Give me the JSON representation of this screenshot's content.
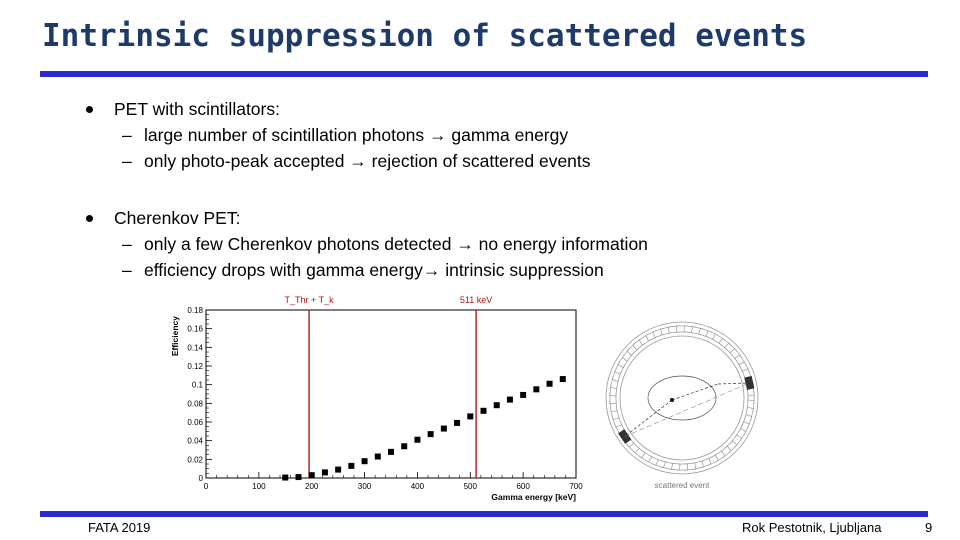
{
  "slide": {
    "title": "Intrinsic suppression of scattered events",
    "bullets": [
      {
        "text": "PET with scintillators:",
        "subs": [
          "large number of scintillation photons → gamma energy",
          "only photo-peak accepted → rejection of scattered events"
        ]
      },
      {
        "text": "Cherenkov PET:",
        "subs": [
          "only a few Cherenkov photons detected → no energy information",
          "efficiency drops with gamma energy→ intrinsic suppression"
        ]
      }
    ],
    "sub_marker": "–",
    "footer_left": "FATA 2019",
    "footer_right": "Rok Pestotnik, Ljubljana",
    "page_number": "9",
    "accent_color": "#2a2ad0",
    "title_color": "#1e3a6a"
  },
  "chart_data": {
    "type": "scatter",
    "title": "",
    "xlabel": "Gamma energy [keV]",
    "ylabel": "Efficiency",
    "xlim": [
      0,
      700
    ],
    "ylim": [
      0,
      0.18
    ],
    "x_ticks": [
      "0",
      "100",
      "200",
      "300",
      "400",
      "500",
      "600",
      "700"
    ],
    "y_ticks": [
      "0",
      "0.02",
      "0.04",
      "0.06",
      "0.08",
      "0.1",
      "0.12",
      "0.14",
      "0.16",
      "0.18"
    ],
    "x": [
      150,
      175,
      200,
      225,
      250,
      275,
      300,
      325,
      350,
      375,
      400,
      425,
      450,
      475,
      500,
      525,
      550,
      575,
      600,
      625,
      650,
      675
    ],
    "y": [
      0.0005,
      0.001,
      0.003,
      0.006,
      0.009,
      0.013,
      0.018,
      0.023,
      0.028,
      0.034,
      0.041,
      0.047,
      0.053,
      0.059,
      0.066,
      0.072,
      0.078,
      0.084,
      0.089,
      0.095,
      0.101,
      0.106
    ],
    "vlines": [
      {
        "x": 195,
        "label": "T_Thr + T_k"
      },
      {
        "x": 511,
        "label": "511 keV"
      }
    ],
    "marker_color": "#000000",
    "line_color": "#b01818"
  },
  "ring_figure": {
    "caption": "scattered event"
  }
}
